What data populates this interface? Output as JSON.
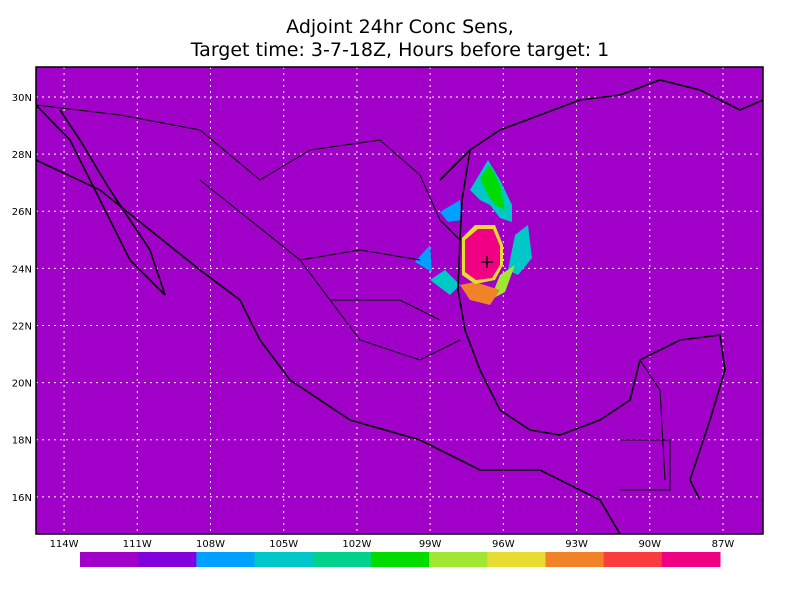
{
  "chart_data": {
    "type": "map",
    "title": "Adjoint 24hr Conc Sens,",
    "subtitle": "Target time: 3-7-18Z, Hours before target: 1",
    "xlim": [
      -115.15,
      -85.36
    ],
    "ylim": [
      14.7,
      31.05
    ],
    "xticks": [
      {
        "value": -114,
        "label": "114W"
      },
      {
        "value": -111,
        "label": "111W"
      },
      {
        "value": -108,
        "label": "108W"
      },
      {
        "value": -105,
        "label": "105W"
      },
      {
        "value": -102,
        "label": "102W"
      },
      {
        "value": -99,
        "label": "99W"
      },
      {
        "value": -96,
        "label": "96W"
      },
      {
        "value": -93,
        "label": "93W"
      },
      {
        "value": -90,
        "label": "90W"
      },
      {
        "value": -87,
        "label": "87W"
      }
    ],
    "yticks": [
      {
        "value": 16,
        "label": "16N"
      },
      {
        "value": 18,
        "label": "18N"
      },
      {
        "value": 20,
        "label": "20N"
      },
      {
        "value": 22,
        "label": "22N"
      },
      {
        "value": 24,
        "label": "24N"
      },
      {
        "value": 26,
        "label": "26N"
      },
      {
        "value": 28,
        "label": "28N"
      },
      {
        "value": 30,
        "label": "30N"
      }
    ],
    "grid": true,
    "background": "#a000c8",
    "colorbar": [
      "#a000c8",
      "#8200dc",
      "#00a0ff",
      "#00c8c8",
      "#00d28c",
      "#00dc00",
      "#a0e632",
      "#e6dc32",
      "#f08228",
      "#fa3c3c",
      "#f00082"
    ]
  }
}
